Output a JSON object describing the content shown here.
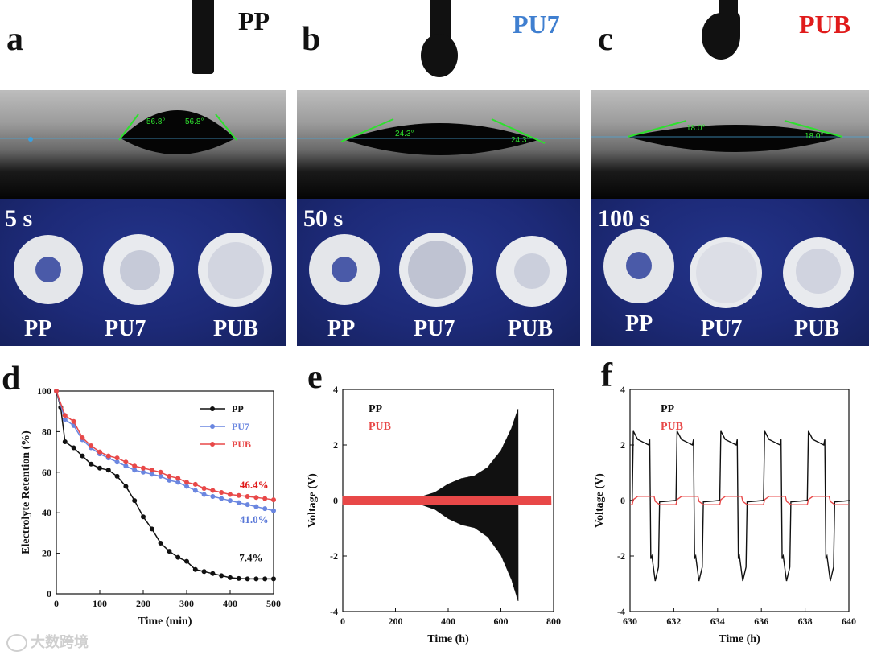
{
  "panels": {
    "a": {
      "letter": "a",
      "sample": "PP",
      "sample_color": "#111111",
      "time": "5 s",
      "angles": [
        "56.8°",
        "56.8°"
      ]
    },
    "b": {
      "letter": "b",
      "sample": "PU7",
      "sample_color": "#3f7fd0",
      "time": "50 s",
      "angles": [
        "24.3°",
        "24.3°"
      ]
    },
    "c": {
      "letter": "c",
      "sample": "PUB",
      "sample_color": "#e01b1b",
      "time": "100 s",
      "angles": [
        "18.0°",
        "18.0°"
      ]
    }
  },
  "disc_labels": [
    "PP",
    "PU7",
    "PUB"
  ],
  "lower_letters": {
    "d": "d",
    "e": "e",
    "f": "f"
  },
  "watermark": "大数跨境",
  "colors": {
    "pp": "#111111",
    "pu7": "#6a86e0",
    "pub": "#e84848",
    "pub_dark": "#e01b1b",
    "pu7_dark": "#3f7fd0"
  },
  "chart_data": [
    {
      "type": "line",
      "xlabel": "Time (min)",
      "ylabel": "Electrolyte Retention (%)",
      "xlim": [
        0,
        500
      ],
      "ylim": [
        0,
        100
      ],
      "xticks": [
        0,
        100,
        200,
        300,
        400,
        500
      ],
      "yticks": [
        0,
        20,
        40,
        60,
        80,
        100
      ],
      "legend_position": "top-right",
      "series": [
        {
          "name": "PP",
          "color": "#111111",
          "x": [
            0,
            10,
            20,
            40,
            60,
            80,
            100,
            120,
            140,
            160,
            180,
            200,
            220,
            240,
            260,
            280,
            300,
            320,
            340,
            360,
            380,
            400,
            420,
            440,
            460,
            480,
            500
          ],
          "y": [
            100,
            92,
            75,
            72,
            68,
            64,
            62,
            61,
            58,
            53,
            46,
            38,
            32,
            25,
            21,
            18,
            16,
            12,
            11,
            10,
            9,
            8,
            7.6,
            7.4,
            7.4,
            7.4,
            7.4
          ]
        },
        {
          "name": "PU7",
          "color": "#6a86e0",
          "x": [
            0,
            20,
            40,
            60,
            80,
            100,
            120,
            140,
            160,
            180,
            200,
            220,
            240,
            260,
            280,
            300,
            320,
            340,
            360,
            380,
            400,
            420,
            440,
            460,
            480,
            500
          ],
          "y": [
            100,
            86,
            83,
            76,
            72,
            69,
            67,
            65,
            63,
            61,
            60,
            59,
            58,
            56,
            55,
            53,
            51,
            49,
            48,
            47,
            46,
            45,
            44,
            43,
            42,
            41
          ]
        },
        {
          "name": "PUB",
          "color": "#e84848",
          "x": [
            0,
            20,
            40,
            60,
            80,
            100,
            120,
            140,
            160,
            180,
            200,
            220,
            240,
            260,
            280,
            300,
            320,
            340,
            360,
            380,
            400,
            420,
            440,
            460,
            480,
            500
          ],
          "y": [
            100,
            88,
            85,
            77,
            73,
            70,
            68,
            67,
            65,
            63,
            62,
            61,
            60,
            58,
            57,
            55,
            54,
            52,
            51,
            50,
            49,
            48.5,
            48,
            47.5,
            47,
            46.4
          ]
        }
      ],
      "annotations": [
        {
          "text": "46.4%",
          "color": "#e01b1b",
          "x": 455,
          "y": 52
        },
        {
          "text": "41.0%",
          "color": "#5a78d8",
          "x": 455,
          "y": 35
        },
        {
          "text": "7.4%",
          "color": "#111111",
          "x": 448,
          "y": 16
        }
      ]
    },
    {
      "type": "line",
      "xlabel": "Time (h)",
      "ylabel": "Voltage (V)",
      "xlim": [
        0,
        800
      ],
      "ylim": [
        -4,
        4
      ],
      "xticks": [
        0,
        200,
        400,
        600,
        800
      ],
      "yticks": [
        -4,
        -2,
        0,
        2,
        4
      ],
      "legend_position": "top-left",
      "series": [
        {
          "name": "PP",
          "color": "#111111",
          "envelope_x": [
            0,
            100,
            200,
            300,
            350,
            400,
            450,
            500,
            550,
            600,
            640,
            665
          ],
          "envelope_y": [
            0.1,
            0.1,
            0.1,
            0.15,
            0.3,
            0.6,
            0.8,
            0.9,
            1.2,
            1.8,
            2.6,
            3.3
          ],
          "end_x": 665
        },
        {
          "name": "PUB",
          "color": "#e84848",
          "amplitude": 0.15,
          "end_x": 790
        }
      ]
    },
    {
      "type": "line",
      "xlabel": "Time (h)",
      "ylabel": "Voltage (V)",
      "xlim": [
        630,
        640
      ],
      "ylim": [
        -4,
        4
      ],
      "xticks": [
        630,
        632,
        634,
        636,
        638,
        640
      ],
      "yticks": [
        -4,
        -2,
        0,
        2,
        4
      ],
      "legend_position": "top-left",
      "series": [
        {
          "name": "PP",
          "color": "#111111",
          "cycle_start": [
            630.1,
            632.1,
            634.1,
            636.1,
            638.1
          ],
          "high": 2.5,
          "plateau_high": 2.0,
          "low": -2.9,
          "plateau_low": -2.1
        },
        {
          "name": "PUB",
          "color": "#e84848",
          "cycle_start": [
            630.1,
            632.1,
            634.1,
            636.1,
            638.1
          ],
          "amplitude": 0.15
        }
      ]
    }
  ]
}
